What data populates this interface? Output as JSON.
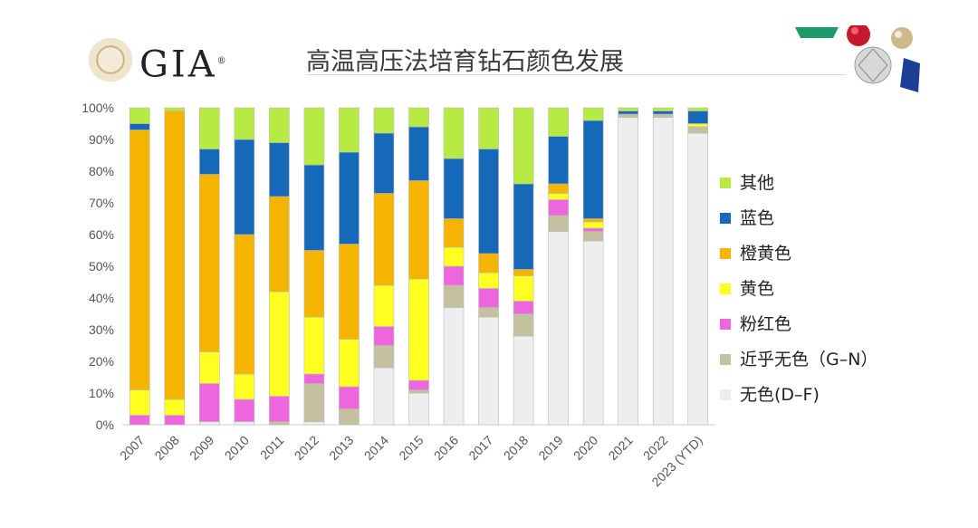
{
  "header": {
    "logo_text": "GIA",
    "logo_reg": "®",
    "title": "高温高压法培育钻石颜色发展"
  },
  "decor": {
    "gem_icons": [
      "emerald-icon",
      "ruby-icon",
      "pearl-icon",
      "diamond-icon",
      "sapphire-icon"
    ]
  },
  "chart_data": {
    "type": "bar",
    "stacked": true,
    "categories": [
      "2007",
      "2008",
      "2009",
      "2010",
      "2011",
      "2012",
      "2013",
      "2014",
      "2015",
      "2016",
      "2017",
      "2018",
      "2019",
      "2020",
      "2021",
      "2022",
      "2023 (YTD)"
    ],
    "yticks": [
      "0%",
      "10%",
      "20%",
      "30%",
      "40%",
      "50%",
      "60%",
      "70%",
      "80%",
      "90%",
      "100%"
    ],
    "ylim": [
      0,
      100
    ],
    "legend_position": "right",
    "series": [
      {
        "name": "无色(D–F)",
        "color": "#eeeeee",
        "values": [
          0,
          0,
          1,
          1,
          0,
          1,
          0,
          18,
          10,
          37,
          34,
          28,
          61,
          58,
          97,
          97,
          92
        ]
      },
      {
        "name": "近乎无色（G–N）",
        "color": "#c4c0a0",
        "values": [
          0,
          0,
          0,
          0,
          1,
          12,
          5,
          7,
          1,
          7,
          3,
          7,
          5,
          3,
          1,
          1,
          2
        ]
      },
      {
        "name": "粉红色",
        "color": "#ee66dd",
        "values": [
          3,
          3,
          12,
          7,
          8,
          3,
          7,
          6,
          3,
          6,
          6,
          4,
          5,
          1,
          0,
          0,
          0
        ]
      },
      {
        "name": "黄色",
        "color": "#ffff22",
        "values": [
          8,
          5,
          10,
          8,
          33,
          18,
          15,
          13,
          32,
          6,
          5,
          8,
          2,
          2,
          0,
          0,
          1
        ]
      },
      {
        "name": "橙黄色",
        "color": "#f5b400",
        "values": [
          82,
          91,
          56,
          44,
          30,
          21,
          30,
          29,
          31,
          9,
          6,
          2,
          3,
          1,
          0,
          0,
          0
        ]
      },
      {
        "name": "蓝色",
        "color": "#1668b8",
        "values": [
          2,
          0,
          8,
          30,
          17,
          27,
          29,
          19,
          17,
          19,
          33,
          27,
          15,
          31,
          1,
          1,
          4
        ]
      },
      {
        "name": "其他",
        "color": "#b8ea44",
        "values": [
          5,
          1,
          13,
          10,
          11,
          18,
          14,
          8,
          6,
          16,
          13,
          24,
          9,
          4,
          1,
          1,
          1
        ]
      }
    ]
  }
}
